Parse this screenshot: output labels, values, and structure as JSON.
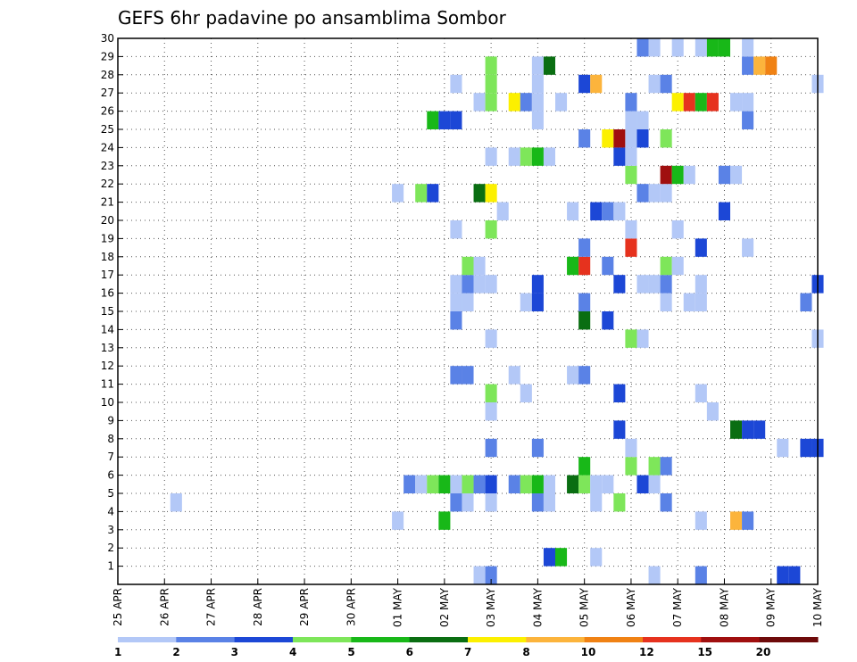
{
  "chart_data": {
    "type": "heatmap",
    "title": "GEFS 6hr padavine po ansamblima Sombor",
    "xlabel": "",
    "ylabel": "",
    "y_ticks": [
      1,
      2,
      3,
      4,
      5,
      6,
      7,
      8,
      9,
      10,
      11,
      12,
      13,
      14,
      15,
      16,
      17,
      18,
      19,
      20,
      21,
      22,
      23,
      24,
      25,
      26,
      27,
      28,
      29,
      30
    ],
    "x_ticks": [
      "25 APR",
      "26 APR",
      "27 APR",
      "28 APR",
      "29 APR",
      "30 APR",
      "01 MAY",
      "02 MAY",
      "03 MAY",
      "04 MAY",
      "05 MAY",
      "06 MAY",
      "07 MAY",
      "08 MAY",
      "09 MAY",
      "10 MAY"
    ],
    "x_unit": "day offset from 25 APR (6-hour steps)",
    "ylim": [
      0,
      30
    ],
    "xlim": [
      0,
      15
    ],
    "grid": true,
    "colorbar": {
      "labels": [
        "1",
        "2",
        "3",
        "4",
        "5",
        "6",
        "7",
        "8",
        "10",
        "12",
        "15",
        "20"
      ],
      "bins": [
        {
          "min": 1,
          "max": 2,
          "color": "#b3c8f7"
        },
        {
          "min": 2,
          "max": 3,
          "color": "#5a82e6"
        },
        {
          "min": 3,
          "max": 4,
          "color": "#1c47d6"
        },
        {
          "min": 4,
          "max": 5,
          "color": "#7ee65a"
        },
        {
          "min": 5,
          "max": 6,
          "color": "#18b818"
        },
        {
          "min": 6,
          "max": 7,
          "color": "#0a6e12"
        },
        {
          "min": 7,
          "max": 8,
          "color": "#fcf000"
        },
        {
          "min": 8,
          "max": 10,
          "color": "#fcb43c"
        },
        {
          "min": 10,
          "max": 12,
          "color": "#f08214"
        },
        {
          "min": 12,
          "max": 15,
          "color": "#e6321e"
        },
        {
          "min": 15,
          "max": 20,
          "color": "#a00f0f"
        },
        {
          "min": 20,
          "max": 999,
          "color": "#6e0a0a"
        }
      ]
    },
    "cells": [
      {
        "x": 14.5,
        "y": 0,
        "c": 2
      },
      {
        "x": 14.25,
        "y": 0,
        "c": 2
      },
      {
        "x": 7.75,
        "y": 0,
        "c": 0
      },
      {
        "x": 8,
        "y": 0,
        "c": 1
      },
      {
        "x": 11.5,
        "y": 0,
        "c": 0
      },
      {
        "x": 12.5,
        "y": 0,
        "c": 1
      },
      {
        "x": 9.25,
        "y": 1,
        "c": 2
      },
      {
        "x": 9.5,
        "y": 1,
        "c": 4
      },
      {
        "x": 10.25,
        "y": 1,
        "c": 0
      },
      {
        "x": 6,
        "y": 3,
        "c": 0
      },
      {
        "x": 7,
        "y": 3,
        "c": 4
      },
      {
        "x": 12.5,
        "y": 3,
        "c": 0
      },
      {
        "x": 13.25,
        "y": 3,
        "c": 7
      },
      {
        "x": 13.5,
        "y": 3,
        "c": 1
      },
      {
        "x": 1.25,
        "y": 4,
        "c": 0
      },
      {
        "x": 7.25,
        "y": 4,
        "c": 1
      },
      {
        "x": 7.5,
        "y": 4,
        "c": 0
      },
      {
        "x": 8,
        "y": 4,
        "c": 0
      },
      {
        "x": 9,
        "y": 4,
        "c": 1
      },
      {
        "x": 9.25,
        "y": 4,
        "c": 0
      },
      {
        "x": 10.25,
        "y": 4,
        "c": 0
      },
      {
        "x": 10.75,
        "y": 4,
        "c": 3
      },
      {
        "x": 11.75,
        "y": 4,
        "c": 1
      },
      {
        "x": 6.25,
        "y": 5,
        "c": 1
      },
      {
        "x": 6.5,
        "y": 5,
        "c": 0
      },
      {
        "x": 6.75,
        "y": 5,
        "c": 3
      },
      {
        "x": 7,
        "y": 5,
        "c": 4
      },
      {
        "x": 7.25,
        "y": 5,
        "c": 0
      },
      {
        "x": 7.5,
        "y": 5,
        "c": 3
      },
      {
        "x": 7.75,
        "y": 5,
        "c": 1
      },
      {
        "x": 8,
        "y": 5,
        "c": 2
      },
      {
        "x": 8.5,
        "y": 5,
        "c": 1
      },
      {
        "x": 8.75,
        "y": 5,
        "c": 3
      },
      {
        "x": 9,
        "y": 5,
        "c": 4
      },
      {
        "x": 9.25,
        "y": 5,
        "c": 0
      },
      {
        "x": 9.75,
        "y": 5,
        "c": 5
      },
      {
        "x": 10,
        "y": 5,
        "c": 3
      },
      {
        "x": 10.25,
        "y": 5,
        "c": 0
      },
      {
        "x": 10.5,
        "y": 5,
        "c": 0
      },
      {
        "x": 11.25,
        "y": 5,
        "c": 2
      },
      {
        "x": 11.5,
        "y": 5,
        "c": 0
      },
      {
        "x": 10,
        "y": 6,
        "c": 4
      },
      {
        "x": 11,
        "y": 6,
        "c": 3
      },
      {
        "x": 11.5,
        "y": 6,
        "c": 3
      },
      {
        "x": 11.75,
        "y": 6,
        "c": 1
      },
      {
        "x": 8,
        "y": 7,
        "c": 1
      },
      {
        "x": 9,
        "y": 7,
        "c": 1
      },
      {
        "x": 11,
        "y": 7,
        "c": 0
      },
      {
        "x": 14.25,
        "y": 7,
        "c": 0
      },
      {
        "x": 14.75,
        "y": 7,
        "c": 2
      },
      {
        "x": 15,
        "y": 7,
        "c": 2
      },
      {
        "x": 10.75,
        "y": 8,
        "c": 2
      },
      {
        "x": 13.25,
        "y": 8,
        "c": 5
      },
      {
        "x": 13.5,
        "y": 8,
        "c": 2
      },
      {
        "x": 13.75,
        "y": 8,
        "c": 2
      },
      {
        "x": 8,
        "y": 9,
        "c": 0
      },
      {
        "x": 12.75,
        "y": 9,
        "c": 0
      },
      {
        "x": 8,
        "y": 10,
        "c": 3
      },
      {
        "x": 8.75,
        "y": 10,
        "c": 0
      },
      {
        "x": 10.75,
        "y": 10,
        "c": 2
      },
      {
        "x": 12.5,
        "y": 10,
        "c": 0
      },
      {
        "x": 7.25,
        "y": 11,
        "c": 1
      },
      {
        "x": 7.5,
        "y": 11,
        "c": 1
      },
      {
        "x": 8.5,
        "y": 11,
        "c": 0
      },
      {
        "x": 9.75,
        "y": 11,
        "c": 0
      },
      {
        "x": 10,
        "y": 11,
        "c": 1
      },
      {
        "x": 8,
        "y": 13,
        "c": 0
      },
      {
        "x": 11,
        "y": 13,
        "c": 3
      },
      {
        "x": 11.25,
        "y": 13,
        "c": 0
      },
      {
        "x": 15,
        "y": 13,
        "c": 0
      },
      {
        "x": 7.25,
        "y": 14,
        "c": 1
      },
      {
        "x": 10,
        "y": 14,
        "c": 5
      },
      {
        "x": 10.5,
        "y": 14,
        "c": 2
      },
      {
        "x": 7.25,
        "y": 15,
        "c": 0
      },
      {
        "x": 7.5,
        "y": 15,
        "c": 0
      },
      {
        "x": 8.75,
        "y": 15,
        "c": 0
      },
      {
        "x": 9,
        "y": 15,
        "c": 2
      },
      {
        "x": 10,
        "y": 15,
        "c": 1
      },
      {
        "x": 11.75,
        "y": 15,
        "c": 0
      },
      {
        "x": 12.25,
        "y": 15,
        "c": 0
      },
      {
        "x": 12.5,
        "y": 15,
        "c": 0
      },
      {
        "x": 14.75,
        "y": 15,
        "c": 1
      },
      {
        "x": 7.25,
        "y": 16,
        "c": 0
      },
      {
        "x": 7.5,
        "y": 16,
        "c": 1
      },
      {
        "x": 7.75,
        "y": 16,
        "c": 0
      },
      {
        "x": 8,
        "y": 16,
        "c": 0
      },
      {
        "x": 9,
        "y": 16,
        "c": 2
      },
      {
        "x": 10.75,
        "y": 16,
        "c": 2
      },
      {
        "x": 11.25,
        "y": 16,
        "c": 0
      },
      {
        "x": 11.5,
        "y": 16,
        "c": 0
      },
      {
        "x": 11.75,
        "y": 16,
        "c": 1
      },
      {
        "x": 12.5,
        "y": 16,
        "c": 0
      },
      {
        "x": 15,
        "y": 16,
        "c": 2
      },
      {
        "x": 7.5,
        "y": 17,
        "c": 3
      },
      {
        "x": 7.75,
        "y": 17,
        "c": 0
      },
      {
        "x": 9.75,
        "y": 17,
        "c": 4
      },
      {
        "x": 10,
        "y": 17,
        "c": 9
      },
      {
        "x": 10.5,
        "y": 17,
        "c": 1
      },
      {
        "x": 11.75,
        "y": 17,
        "c": 3
      },
      {
        "x": 12,
        "y": 17,
        "c": 0
      },
      {
        "x": 10,
        "y": 18,
        "c": 1
      },
      {
        "x": 11,
        "y": 18,
        "c": 9
      },
      {
        "x": 12.5,
        "y": 18,
        "c": 2
      },
      {
        "x": 13.5,
        "y": 18,
        "c": 0
      },
      {
        "x": 7.25,
        "y": 19,
        "c": 0
      },
      {
        "x": 8,
        "y": 19,
        "c": 3
      },
      {
        "x": 11,
        "y": 19,
        "c": 0
      },
      {
        "x": 12,
        "y": 19,
        "c": 0
      },
      {
        "x": 8.25,
        "y": 20,
        "c": 0
      },
      {
        "x": 9.75,
        "y": 20,
        "c": 0
      },
      {
        "x": 10.25,
        "y": 20,
        "c": 2
      },
      {
        "x": 10.5,
        "y": 20,
        "c": 1
      },
      {
        "x": 10.75,
        "y": 20,
        "c": 0
      },
      {
        "x": 13,
        "y": 20,
        "c": 2
      },
      {
        "x": 6,
        "y": 21,
        "c": 0
      },
      {
        "x": 6.5,
        "y": 21,
        "c": 3
      },
      {
        "x": 6.75,
        "y": 21,
        "c": 2
      },
      {
        "x": 7.75,
        "y": 21,
        "c": 5
      },
      {
        "x": 8,
        "y": 21,
        "c": 6
      },
      {
        "x": 11.25,
        "y": 21,
        "c": 1
      },
      {
        "x": 11.5,
        "y": 21,
        "c": 0
      },
      {
        "x": 11.75,
        "y": 21,
        "c": 0
      },
      {
        "x": 11,
        "y": 22,
        "c": 3
      },
      {
        "x": 11.75,
        "y": 22,
        "c": 10
      },
      {
        "x": 12,
        "y": 22,
        "c": 4
      },
      {
        "x": 12.25,
        "y": 22,
        "c": 0
      },
      {
        "x": 13,
        "y": 22,
        "c": 1
      },
      {
        "x": 13.25,
        "y": 22,
        "c": 0
      },
      {
        "x": 8,
        "y": 23,
        "c": 0
      },
      {
        "x": 8.5,
        "y": 23,
        "c": 0
      },
      {
        "x": 8.75,
        "y": 23,
        "c": 3
      },
      {
        "x": 9,
        "y": 23,
        "c": 4
      },
      {
        "x": 9.25,
        "y": 23,
        "c": 0
      },
      {
        "x": 10.75,
        "y": 23,
        "c": 2
      },
      {
        "x": 11,
        "y": 23,
        "c": 0
      },
      {
        "x": 10,
        "y": 24,
        "c": 1
      },
      {
        "x": 10.5,
        "y": 24,
        "c": 6
      },
      {
        "x": 10.75,
        "y": 24,
        "c": 10
      },
      {
        "x": 11,
        "y": 24,
        "c": 0
      },
      {
        "x": 11.25,
        "y": 24,
        "c": 2
      },
      {
        "x": 11.75,
        "y": 24,
        "c": 3
      },
      {
        "x": 6.75,
        "y": 25,
        "c": 4
      },
      {
        "x": 7,
        "y": 25,
        "c": 2
      },
      {
        "x": 7.25,
        "y": 25,
        "c": 2
      },
      {
        "x": 9,
        "y": 25,
        "c": 0
      },
      {
        "x": 11,
        "y": 25,
        "c": 0
      },
      {
        "x": 11.25,
        "y": 25,
        "c": 0
      },
      {
        "x": 13.5,
        "y": 25,
        "c": 1
      },
      {
        "x": 7.75,
        "y": 26,
        "c": 0
      },
      {
        "x": 8,
        "y": 26,
        "c": 3
      },
      {
        "x": 8.5,
        "y": 26,
        "c": 6
      },
      {
        "x": 8.75,
        "y": 26,
        "c": 1
      },
      {
        "x": 9,
        "y": 26,
        "c": 0
      },
      {
        "x": 9.5,
        "y": 26,
        "c": 0
      },
      {
        "x": 11,
        "y": 26,
        "c": 1
      },
      {
        "x": 12,
        "y": 26,
        "c": 6
      },
      {
        "x": 12.25,
        "y": 26,
        "c": 9
      },
      {
        "x": 12.5,
        "y": 26,
        "c": 4
      },
      {
        "x": 12.75,
        "y": 26,
        "c": 9
      },
      {
        "x": 13.25,
        "y": 26,
        "c": 0
      },
      {
        "x": 13.5,
        "y": 26,
        "c": 0
      },
      {
        "x": 7.25,
        "y": 27,
        "c": 0
      },
      {
        "x": 8,
        "y": 27,
        "c": 3
      },
      {
        "x": 9,
        "y": 27,
        "c": 0
      },
      {
        "x": 10,
        "y": 27,
        "c": 2
      },
      {
        "x": 10.25,
        "y": 27,
        "c": 7
      },
      {
        "x": 11.5,
        "y": 27,
        "c": 0
      },
      {
        "x": 11.75,
        "y": 27,
        "c": 1
      },
      {
        "x": 15,
        "y": 27,
        "c": 0
      },
      {
        "x": 8,
        "y": 28,
        "c": 3
      },
      {
        "x": 9,
        "y": 28,
        "c": 0
      },
      {
        "x": 9.25,
        "y": 28,
        "c": 5
      },
      {
        "x": 13.5,
        "y": 28,
        "c": 1
      },
      {
        "x": 13.75,
        "y": 28,
        "c": 7
      },
      {
        "x": 14,
        "y": 28,
        "c": 8
      },
      {
        "x": 11.25,
        "y": 29,
        "c": 1
      },
      {
        "x": 11.5,
        "y": 29,
        "c": 0
      },
      {
        "x": 12,
        "y": 29,
        "c": 0
      },
      {
        "x": 12.5,
        "y": 29,
        "c": 0
      },
      {
        "x": 12.75,
        "y": 29,
        "c": 4
      },
      {
        "x": 13,
        "y": 29,
        "c": 4
      },
      {
        "x": 13.5,
        "y": 29,
        "c": 0
      }
    ]
  }
}
